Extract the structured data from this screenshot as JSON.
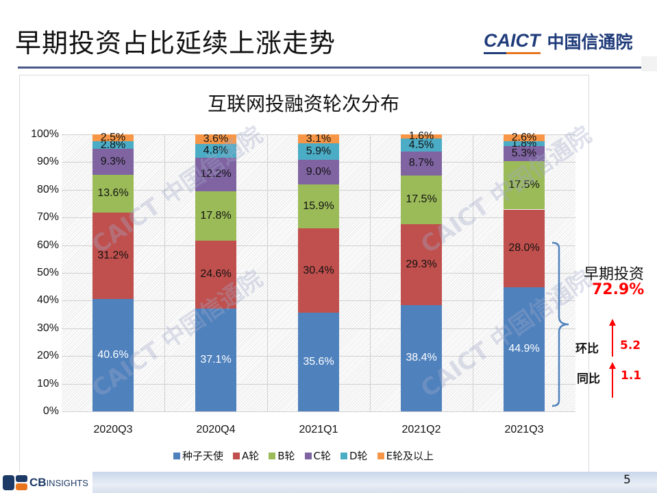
{
  "slide": {
    "title": "早期投资占比延续上涨走势",
    "logo_en": "CAICT",
    "logo_cn": "中国信通院",
    "page_number": "5",
    "footer_logo_bold": "CB",
    "footer_logo_rest": "INSIGHTS"
  },
  "colors": {
    "seed": "#4f81bd",
    "a": "#c0504d",
    "b": "#9bbb59",
    "c": "#8064a2",
    "d": "#4bacc6",
    "e": "#f79646",
    "accent_red": "#ff0000",
    "title_rule": "#4a5786"
  },
  "watermark": {
    "text_en": "CAICT",
    "text_cn": "中国信通院"
  },
  "annotation": {
    "label": "早期投资",
    "value": "72.9%",
    "qoq_label": "环比",
    "qoq_value": "5.2",
    "yoy_label": "同比",
    "yoy_value": "1.1"
  },
  "chart_data": {
    "type": "bar",
    "stacked": true,
    "percent": true,
    "title": "互联网投融资轮次分布",
    "xlabel": "",
    "ylabel": "",
    "ylim": [
      0,
      100
    ],
    "yticks": [
      "0%",
      "10%",
      "20%",
      "30%",
      "40%",
      "50%",
      "60%",
      "70%",
      "80%",
      "90%",
      "100%"
    ],
    "grid": true,
    "legend_position": "bottom",
    "categories": [
      "2020Q3",
      "2020Q4",
      "2021Q1",
      "2021Q2",
      "2021Q3"
    ],
    "series": [
      {
        "name": "种子天使",
        "color": "#4f81bd",
        "values": [
          40.6,
          37.1,
          35.6,
          38.4,
          44.9
        ],
        "labels": [
          "40.6%",
          "37.1%",
          "35.6%",
          "38.4%",
          "44.9%"
        ]
      },
      {
        "name": "A轮",
        "color": "#c0504d",
        "values": [
          31.2,
          24.6,
          30.4,
          29.3,
          28.0
        ],
        "labels": [
          "31.2%",
          "24.6%",
          "30.4%",
          "29.3%",
          "28.0%"
        ]
      },
      {
        "name": "B轮",
        "color": "#9bbb59",
        "values": [
          13.6,
          17.8,
          15.9,
          17.5,
          17.5
        ],
        "labels": [
          "13.6%",
          "17.8%",
          "15.9%",
          "17.5%",
          "17.5%"
        ]
      },
      {
        "name": "C轮",
        "color": "#8064a2",
        "values": [
          9.3,
          12.2,
          9.0,
          8.7,
          5.3
        ],
        "labels": [
          "9.3%",
          "12.2%",
          "9.0%",
          "8.7%",
          "5.3%"
        ]
      },
      {
        "name": "D轮",
        "color": "#4bacc6",
        "values": [
          2.8,
          4.8,
          5.9,
          4.5,
          1.8
        ],
        "labels": [
          "2.8%",
          "4.8%",
          "5.9%",
          "4.5%",
          "1.8%"
        ]
      },
      {
        "name": "E轮及以上",
        "color": "#f79646",
        "values": [
          2.5,
          3.6,
          3.1,
          1.6,
          2.6
        ],
        "labels": [
          "2.5%",
          "3.6%",
          "3.1%",
          "1.6%",
          "2.6%"
        ]
      }
    ],
    "annotations": [
      {
        "text": "早期投资 72.9%",
        "target": "2021Q3 种子天使+A轮"
      },
      {
        "text": "环比 5.2",
        "direction": "up"
      },
      {
        "text": "同比 1.1",
        "direction": "up"
      }
    ]
  }
}
